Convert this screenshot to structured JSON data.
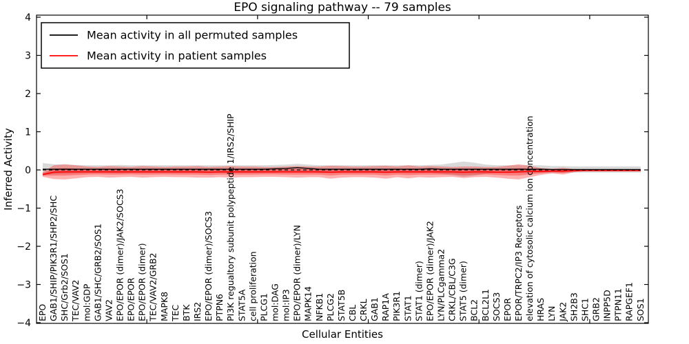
{
  "chart_data": {
    "type": "line",
    "title": "EPO signaling pathway -- 79 samples",
    "xlabel": "Cellular Entities",
    "ylabel": "Inferred Activity",
    "ylim": [
      -4,
      4
    ],
    "yticks": [
      4,
      3,
      2,
      1,
      0,
      -1,
      -2,
      -3,
      -4
    ],
    "xtick_indices": [
      9.4,
      19.4,
      29.4,
      39.4,
      49.4
    ],
    "grid": false,
    "legend_position": "upper left",
    "categories": [
      "EPO",
      "GAB1/SHIP/PIK3R1/SHP2/SHC",
      "SHC/Grb2/SOS1",
      "TEC/VAV2",
      "mol:GDP",
      "GAB1/SHC/GRB2/SOS1",
      "VAV2",
      "EPO/EPOR (dimer)/JAK2/SOCS3",
      "EPO/EPOR",
      "EPO/EPOR (dimer)",
      "TEC/VAV2/GRB2",
      "MAPK8",
      "TEC",
      "BTK",
      "IRS2",
      "EPO/EPOR (dimer)/SOCS3",
      "PTPN6",
      "PI3K regualtory subunit polypeptide 1/IRS2/SHIP",
      "STAT5A",
      "cell proliferation",
      "PLCG1",
      "mol:DAG",
      "mol:IP3",
      "EPO/EPOR (dimer)/LYN",
      "MAPK14",
      "NFKB1",
      "PLCG2",
      "STAT5B",
      "CBL",
      "CRKL",
      "GAB1",
      "RAP1A",
      "PIK3R1",
      "STAT1",
      "STAT1 (dimer)",
      "EPO/EPOR (dimer)/JAK2",
      "LYN/PLCgamma2",
      "CRKL/CBL/C3G",
      "STAT5 (dimer)",
      "BCL2",
      "BCL2L1",
      "SOCS3",
      "EPOR",
      "EPOR/TRPC2/IP3 Receptors",
      "elevation of cytosolic calcium ion concentration",
      "HRAS",
      "LYN",
      "JAK2",
      "SH2B3",
      "SHC1",
      "GRB2",
      "INPP5D",
      "PTPN11",
      "RAPGEF1",
      "SOS1"
    ],
    "series": [
      {
        "name": "Mean activity in all permuted samples",
        "color": "#000000",
        "style": "solid",
        "width": 1.4,
        "values": [
          0.02,
          0.02,
          0.02,
          0.02,
          0.02,
          0.02,
          0.02,
          0.02,
          0.02,
          0.02,
          0.02,
          0.02,
          0.02,
          0.02,
          0.02,
          0.02,
          0.02,
          0.02,
          0.02,
          0.02,
          0.02,
          0.03,
          0.04,
          0.06,
          0.04,
          0.02,
          0.02,
          0.02,
          0.02,
          0.02,
          0.02,
          0.02,
          0.02,
          0.02,
          0.02,
          0.03,
          0.02,
          0.02,
          0.02,
          0.02,
          0.02,
          0.02,
          0.02,
          0.02,
          0.02,
          0.02,
          0.01,
          0.01,
          0.01,
          0.01,
          0.01,
          0.01,
          0.01,
          0.01,
          0.01
        ]
      },
      {
        "name": "Mean activity in patient samples",
        "color": "#ff0000",
        "style": "solid",
        "width": 1.6,
        "values": [
          -0.12,
          -0.06,
          -0.05,
          -0.05,
          -0.05,
          -0.05,
          -0.05,
          -0.05,
          -0.05,
          -0.05,
          -0.05,
          -0.05,
          -0.05,
          -0.05,
          -0.05,
          -0.06,
          -0.05,
          -0.05,
          -0.05,
          -0.05,
          -0.05,
          -0.05,
          -0.05,
          -0.05,
          -0.05,
          -0.05,
          -0.06,
          -0.05,
          -0.05,
          -0.05,
          -0.05,
          -0.06,
          -0.05,
          -0.05,
          -0.05,
          -0.05,
          -0.05,
          -0.05,
          -0.06,
          -0.05,
          -0.05,
          -0.06,
          -0.06,
          -0.05,
          -0.04,
          -0.04,
          -0.03,
          -0.03,
          -0.02,
          -0.02,
          -0.02,
          -0.02,
          -0.02,
          -0.02,
          -0.02
        ]
      },
      {
        "name": "zero reference",
        "color": "#000000",
        "style": "dashed",
        "width": 1.3,
        "constant": 0
      }
    ],
    "bands": [
      {
        "name": "permuted samples std band",
        "color": "#000000",
        "opacity": 0.15,
        "layers": 1,
        "center_series": 0,
        "halfwidths": [
          0.16,
          0.13,
          0.12,
          0.11,
          0.1,
          0.1,
          0.1,
          0.11,
          0.1,
          0.1,
          0.1,
          0.1,
          0.1,
          0.1,
          0.1,
          0.1,
          0.1,
          0.1,
          0.1,
          0.1,
          0.1,
          0.1,
          0.1,
          0.1,
          0.1,
          0.1,
          0.1,
          0.1,
          0.1,
          0.1,
          0.1,
          0.1,
          0.1,
          0.1,
          0.1,
          0.1,
          0.12,
          0.16,
          0.2,
          0.17,
          0.12,
          0.1,
          0.1,
          0.1,
          0.1,
          0.1,
          0.09,
          0.09,
          0.08,
          0.08,
          0.08,
          0.08,
          0.08,
          0.08,
          0.08
        ]
      },
      {
        "name": "patient samples std band",
        "color": "#ff0000",
        "opacity": 0.3,
        "layers": 2,
        "center_series": 1,
        "halfwidths": [
          0.06,
          0.18,
          0.2,
          0.17,
          0.14,
          0.13,
          0.15,
          0.14,
          0.13,
          0.15,
          0.14,
          0.13,
          0.14,
          0.14,
          0.15,
          0.14,
          0.14,
          0.15,
          0.14,
          0.14,
          0.13,
          0.13,
          0.14,
          0.15,
          0.14,
          0.14,
          0.17,
          0.15,
          0.14,
          0.14,
          0.15,
          0.17,
          0.14,
          0.17,
          0.14,
          0.15,
          0.14,
          0.13,
          0.15,
          0.14,
          0.13,
          0.14,
          0.17,
          0.2,
          0.15,
          0.09,
          0.06,
          0.09,
          0.04,
          0.01,
          0.01,
          0.01,
          0.01,
          0.01,
          0.01
        ]
      }
    ],
    "legend": {
      "entries": [
        {
          "label": "Mean activity in all permuted samples",
          "color": "#000000"
        },
        {
          "label": "Mean activity in patient samples",
          "color": "#ff0000"
        }
      ]
    }
  }
}
